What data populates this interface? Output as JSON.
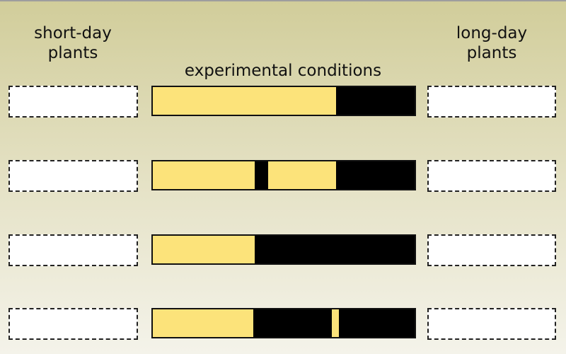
{
  "headings": {
    "short_day": "short-day\nplants",
    "long_day": "long-day\nplants",
    "experimental": "experimental conditions"
  },
  "colors": {
    "light": "#fce37a",
    "dark": "#000000",
    "answer_box": "#ffffff",
    "background_top": "#d1cd9a",
    "background_bottom": "#f4f3ea"
  },
  "diagram_data": {
    "type": "photoperiod-bars",
    "scale_note": "bars show the light/dark cycle as fractions of one full cycle",
    "rows": [
      {
        "segments": [
          {
            "kind": "light",
            "fraction": 0.7
          },
          {
            "kind": "dark",
            "fraction": 0.3
          }
        ]
      },
      {
        "segments": [
          {
            "kind": "light",
            "fraction": 0.39
          },
          {
            "kind": "dark",
            "fraction": 0.05
          },
          {
            "kind": "light",
            "fraction": 0.26
          },
          {
            "kind": "dark",
            "fraction": 0.3
          }
        ]
      },
      {
        "segments": [
          {
            "kind": "light",
            "fraction": 0.39
          },
          {
            "kind": "dark",
            "fraction": 0.61
          }
        ]
      },
      {
        "segments": [
          {
            "kind": "light",
            "fraction": 0.385
          },
          {
            "kind": "dark",
            "fraction": 0.3
          },
          {
            "kind": "light",
            "fraction": 0.025
          },
          {
            "kind": "dark",
            "fraction": 0.29
          }
        ]
      }
    ]
  }
}
